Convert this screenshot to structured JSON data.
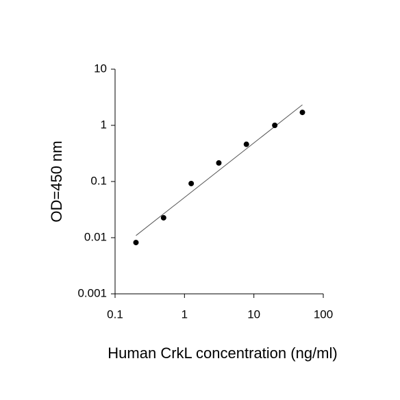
{
  "chart_data": {
    "type": "scatter",
    "x_label": "Human CrkL concentration (ng/ml)",
    "y_label": "OD=450 nm",
    "x_scale": "log",
    "y_scale": "log",
    "xlim": [
      0.1,
      100
    ],
    "xticks": [
      0.1,
      1,
      10,
      100
    ],
    "ylim": [
      0.001,
      10
    ],
    "yticks": [
      0.001,
      0.01,
      0.1,
      1,
      10
    ],
    "color": "#000000",
    "x": [
      0.2,
      0.5,
      1.25,
      3.125,
      7.8,
      20,
      50
    ],
    "values": [
      0.0082,
      0.0226,
      0.092,
      0.214,
      0.46,
      1.0,
      1.7
    ],
    "fit": {
      "color": "#555555",
      "x": [
        0.2,
        50
      ],
      "values": [
        0.0109,
        2.32
      ]
    }
  }
}
